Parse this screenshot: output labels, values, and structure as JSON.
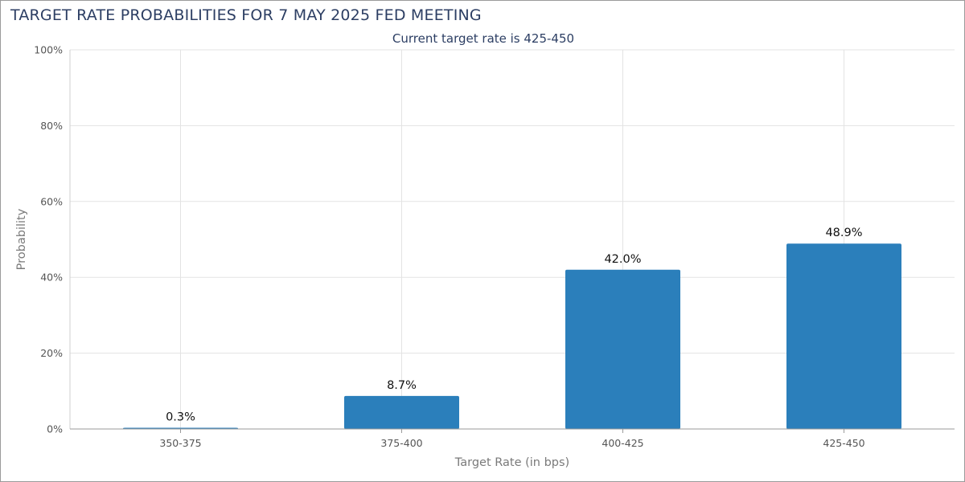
{
  "title": "TARGET RATE PROBABILITIES FOR 7 MAY 2025 FED MEETING",
  "subtitle": "Current target rate is 425-450",
  "chart_data": {
    "type": "bar",
    "title": "TARGET RATE PROBABILITIES FOR 7 MAY 2025 FED MEETING",
    "subtitle": "Current target rate is 425-450",
    "xlabel": "Target Rate (in bps)",
    "ylabel": "Probability",
    "categories": [
      "350-375",
      "375-400",
      "400-425",
      "425-450"
    ],
    "values": [
      0.3,
      8.7,
      42.0,
      48.9
    ],
    "value_labels": [
      "0.3%",
      "8.7%",
      "42.0%",
      "48.9%"
    ],
    "ylim": [
      0,
      100
    ],
    "yticks": [
      0,
      20,
      40,
      60,
      80,
      100
    ],
    "ytick_labels": [
      "0%",
      "20%",
      "40%",
      "60%",
      "80%",
      "100%"
    ],
    "grid": true,
    "bar_color": "#2b7fbb",
    "grid_color": "#e3e3e3"
  }
}
